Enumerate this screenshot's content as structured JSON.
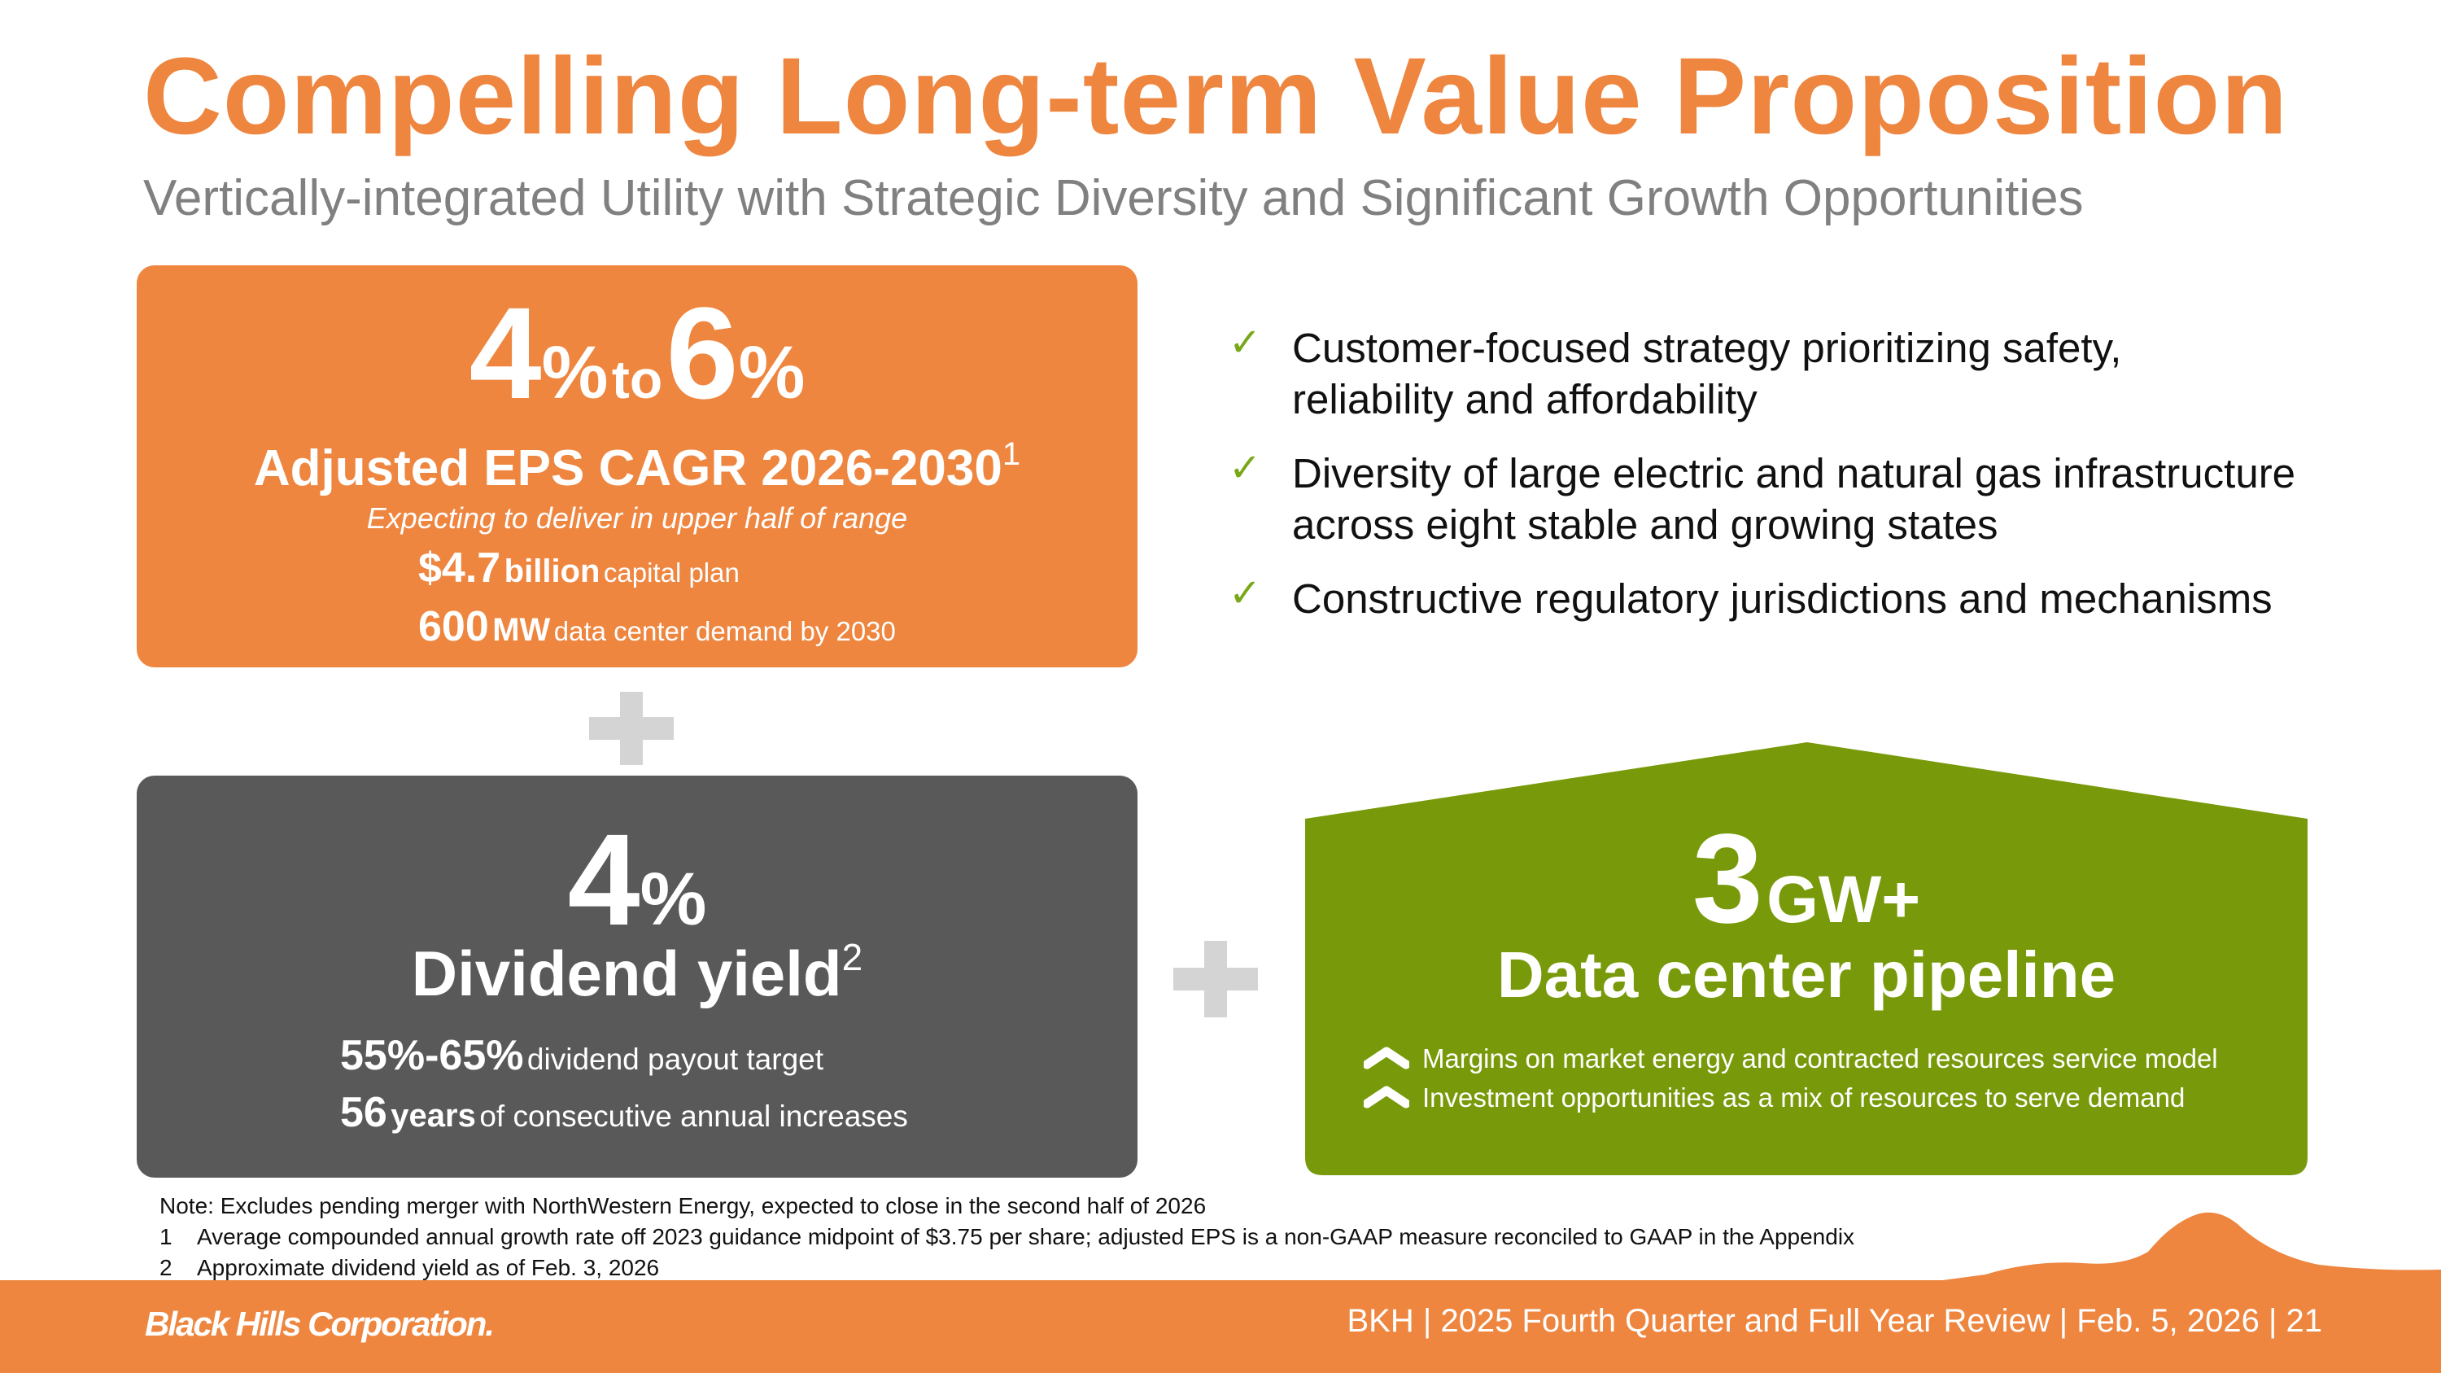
{
  "title": "Compelling Long-term Value Proposition",
  "subtitle": "Vertically-integrated Utility with Strategic Diversity and Significant Growth Opportunities",
  "colors": {
    "accent_orange": "#ee8640",
    "dark_gray": "#595959",
    "green": "#789a0a",
    "check_green": "#78a817",
    "plus_gray": "#d4d4d4"
  },
  "eps": {
    "low": "4",
    "low_pct": "%",
    "to": "to",
    "high": "6",
    "high_pct": "%",
    "label": "Adjusted EPS CAGR 2026-2030",
    "label_note": "1",
    "note": "Expecting to deliver in upper half of range",
    "capital_value": "$4.7",
    "capital_unit": "billion",
    "capital_text": "capital plan",
    "demand_value": "600",
    "demand_unit": "MW",
    "demand_text": "data center demand by 2030"
  },
  "dividend": {
    "value": "4",
    "pct": "%",
    "label": "Dividend yield",
    "label_note": "2",
    "payout_value": "55%-65%",
    "payout_text": "dividend payout target",
    "years_value": "56",
    "years_unit": "years",
    "years_text": "of consecutive annual increases"
  },
  "checklist": [
    {
      "icon": "check-icon",
      "mark": "✓",
      "lines": [
        "Customer-focused strategy prioritizing safety,",
        "reliability and affordability"
      ]
    },
    {
      "icon": "check-icon",
      "mark": "✓",
      "lines": [
        "Diversity of large electric and natural gas infrastructure",
        "across eight stable and growing states"
      ]
    },
    {
      "icon": "check-icon",
      "mark": "✓",
      "lines": [
        "Constructive regulatory jurisdictions and mechanisms"
      ]
    }
  ],
  "data_center": {
    "value": "3",
    "unit": "GW+",
    "label": "Data center pipeline",
    "bullets": [
      {
        "icon": "chevron-up-icon",
        "text": "Margins on market energy and contracted resources service model"
      },
      {
        "icon": "chevron-up-icon",
        "text": "Investment opportunities as a mix of resources to serve demand"
      }
    ]
  },
  "notes": {
    "main": "Note: Excludes pending merger with NorthWestern Energy, expected to close in the second half of 2026",
    "items": [
      {
        "num": "1",
        "text": "Average compounded annual growth rate off 2023 guidance midpoint of $3.75 per share; adjusted EPS is a non-GAAP measure reconciled to GAAP in the Appendix"
      },
      {
        "num": "2",
        "text": "Approximate dividend yield as of Feb. 3, 2026"
      }
    ]
  },
  "footer": {
    "logo": "Black Hills Corporation.",
    "text": "BKH  |  2025 Fourth Quarter and Full Year Review  |  Feb. 5, 2026  |  21"
  }
}
